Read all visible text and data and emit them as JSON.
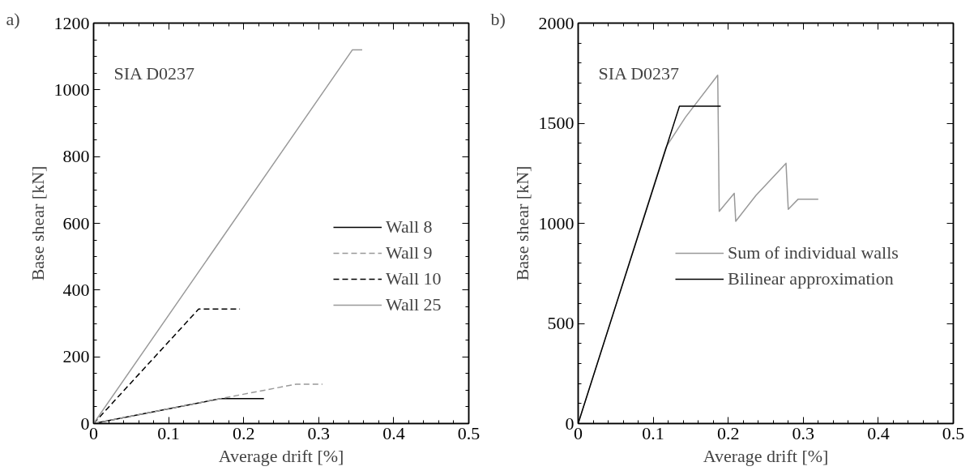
{
  "chart_data": [
    {
      "type": "line",
      "title": "a)",
      "xlabel": "Average drift [%]",
      "ylabel": "Base shear [kN]",
      "annotations": [
        "SIA D0237"
      ],
      "xlim": [
        0,
        0.5
      ],
      "xticks": [
        0,
        0.1,
        0.2,
        0.3,
        0.4,
        0.5
      ],
      "ylim": [
        0,
        1200
      ],
      "yticks": [
        0,
        200,
        400,
        600,
        800,
        1000,
        1200
      ],
      "grid": false,
      "legend": "right",
      "marker": "none",
      "series": [
        {
          "name": "Wall 8",
          "color": "#000000",
          "line_style": "solid",
          "x": [
            0,
            0.17,
            0.227
          ],
          "values": [
            0,
            75,
            75
          ]
        },
        {
          "name": "Wall 9",
          "color": "#999999",
          "line_style": "dashed",
          "x": [
            0,
            0.17,
            0.27,
            0.305
          ],
          "values": [
            0,
            75,
            118,
            118
          ]
        },
        {
          "name": "Wall 10",
          "color": "#000000",
          "line_style": "dashed",
          "x": [
            0,
            0.14,
            0.195
          ],
          "values": [
            0,
            343,
            343
          ]
        },
        {
          "name": "Wall 25",
          "color": "#999999",
          "line_style": "solid",
          "x": [
            0,
            0.345,
            0.358
          ],
          "values": [
            0,
            1120,
            1120
          ]
        }
      ]
    },
    {
      "type": "line",
      "title": "b)",
      "xlabel": "Average drift [%]",
      "ylabel": "Base shear [kN]",
      "annotations": [
        "SIA D0237"
      ],
      "xlim": [
        0,
        0.5
      ],
      "xticks": [
        0,
        0.1,
        0.2,
        0.3,
        0.4,
        0.5
      ],
      "ylim": [
        0,
        2000
      ],
      "yticks": [
        0,
        500,
        1000,
        1500,
        2000
      ],
      "grid": false,
      "legend": "right",
      "marker": "none",
      "series": [
        {
          "name": "Sum of individual walls",
          "color": "#999999",
          "line_style": "solid",
          "x": [
            0,
            0.117,
            0.143,
            0.186,
            0.188,
            0.208,
            0.21,
            0.237,
            0.277,
            0.28,
            0.293,
            0.32
          ],
          "values": [
            0,
            1380,
            1530,
            1740,
            1060,
            1150,
            1010,
            1140,
            1300,
            1070,
            1120,
            1120
          ]
        },
        {
          "name": "Bilinear approximation",
          "color": "#000000",
          "line_style": "solid",
          "x": [
            0,
            0.135,
            0.19
          ],
          "values": [
            0,
            1585,
            1585
          ]
        }
      ]
    }
  ]
}
